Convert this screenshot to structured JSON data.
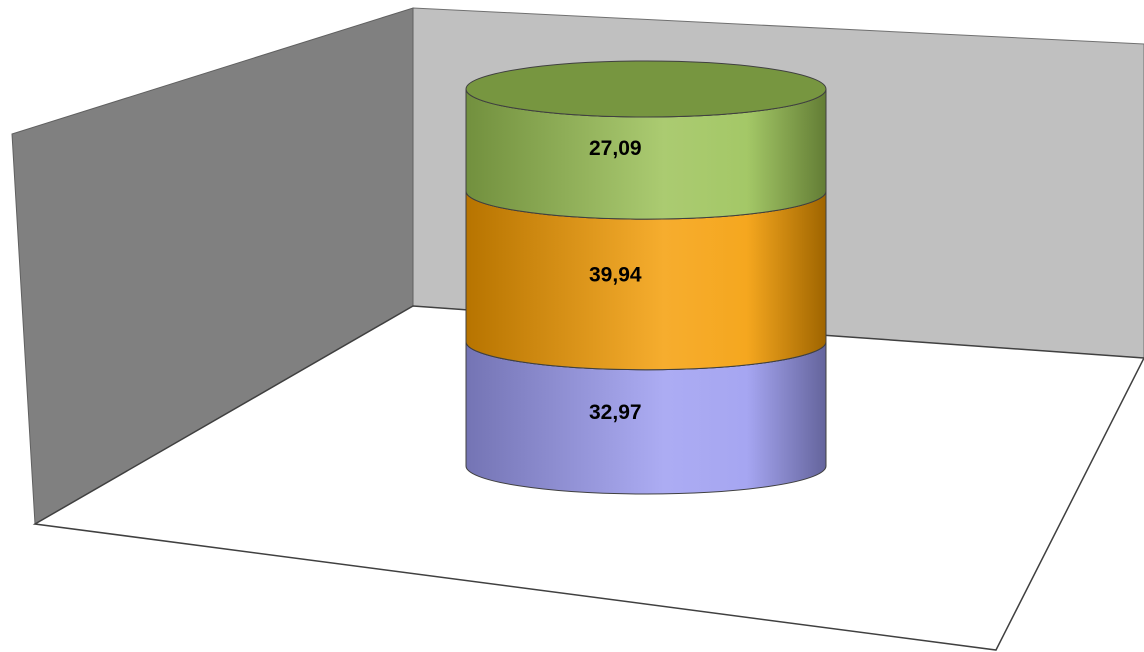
{
  "chart_data": {
    "type": "bar",
    "subtype": "3d-stacked-cylinder",
    "categories": [
      ""
    ],
    "series": [
      {
        "values": [
          32.97
        ],
        "label": "32,97",
        "color": "#9a9af0"
      },
      {
        "values": [
          39.94
        ],
        "label": "39,94",
        "color": "#f49b00"
      },
      {
        "values": [
          27.09
        ],
        "label": "27,09",
        "color": "#98c052"
      }
    ],
    "ylim": [
      0,
      100
    ],
    "legend": "none",
    "gridlines": false,
    "colors": {
      "back_wall": "#c0c0c0",
      "side_wall": "#808080",
      "floor": "#ffffff",
      "outline": "#404040"
    }
  }
}
